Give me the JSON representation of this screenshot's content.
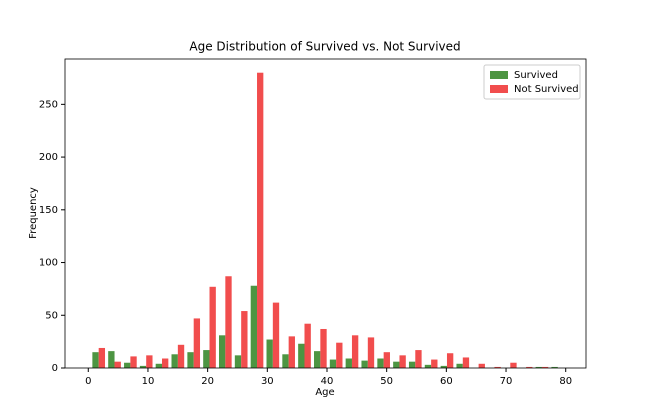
{
  "chart_data": {
    "type": "histogram",
    "title": "Age Distribution of Survived vs. Not Survived",
    "x_label": "Age",
    "y_label": "Frequency",
    "bins": [
      0.42,
      3.07,
      5.73,
      8.38,
      11.03,
      13.68,
      16.34,
      18.99,
      21.64,
      24.29,
      26.95,
      29.6,
      32.25,
      34.9,
      37.56,
      40.21,
      42.86,
      45.51,
      48.17,
      50.82,
      53.47,
      56.12,
      58.78,
      61.43,
      64.08,
      66.73,
      69.39,
      72.04,
      74.69,
      77.34,
      80.0
    ],
    "series": [
      {
        "name": "Survived",
        "color": "#3a8a2e",
        "values": [
          15,
          16,
          5,
          2,
          4,
          13,
          15,
          17,
          31,
          12,
          78,
          27,
          13,
          23,
          16,
          8,
          9,
          7,
          9,
          6,
          6,
          3,
          2,
          4,
          0,
          0,
          0,
          0,
          1,
          1
        ]
      },
      {
        "name": "Not Survived",
        "color": "#f03a3a",
        "values": [
          19,
          6,
          11,
          12,
          9,
          22,
          47,
          77,
          87,
          54,
          280,
          62,
          30,
          42,
          37,
          24,
          31,
          29,
          15,
          12,
          17,
          8,
          14,
          10,
          4,
          1,
          5,
          1,
          1,
          0
        ]
      }
    ],
    "xlim": [
      -3.9,
      83.4
    ],
    "xticks": [
      0,
      10,
      20,
      30,
      40,
      50,
      60,
      70,
      80
    ],
    "ylim": [
      0,
      293
    ],
    "yticks": [
      0,
      50,
      100,
      150,
      200,
      250
    ],
    "legend": "upper right"
  }
}
